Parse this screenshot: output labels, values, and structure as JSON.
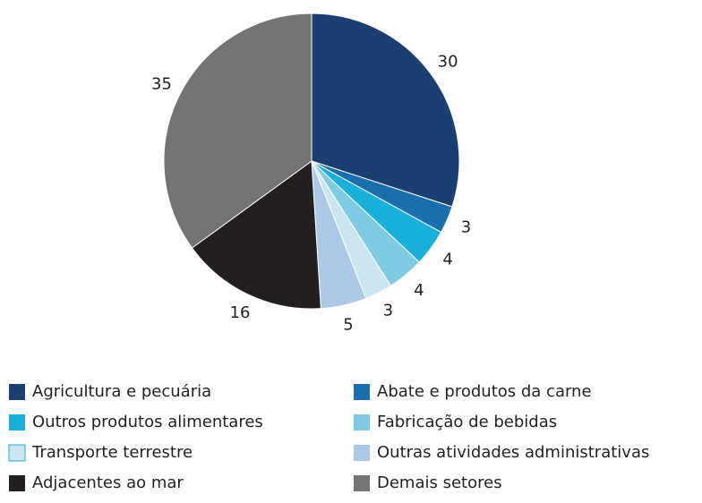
{
  "chart_data": {
    "type": "pie",
    "categories": [
      "Agricultura e pecuária",
      "Abate e produtos da carne",
      "Outros produtos alimentares",
      "Fabricação de bebidas",
      "Transporte terrestre",
      "Outras atividades administrativas",
      "Adjacentes ao mar",
      "Demais setores"
    ],
    "values": [
      30,
      3,
      4,
      4,
      3,
      5,
      16,
      35
    ],
    "colors": [
      "#1a3f73",
      "#1a6fae",
      "#1ab0dc",
      "#7fcbe6",
      "#cbe6f0",
      "#a9c9e6",
      "#231f20",
      "#737373"
    ]
  }
}
